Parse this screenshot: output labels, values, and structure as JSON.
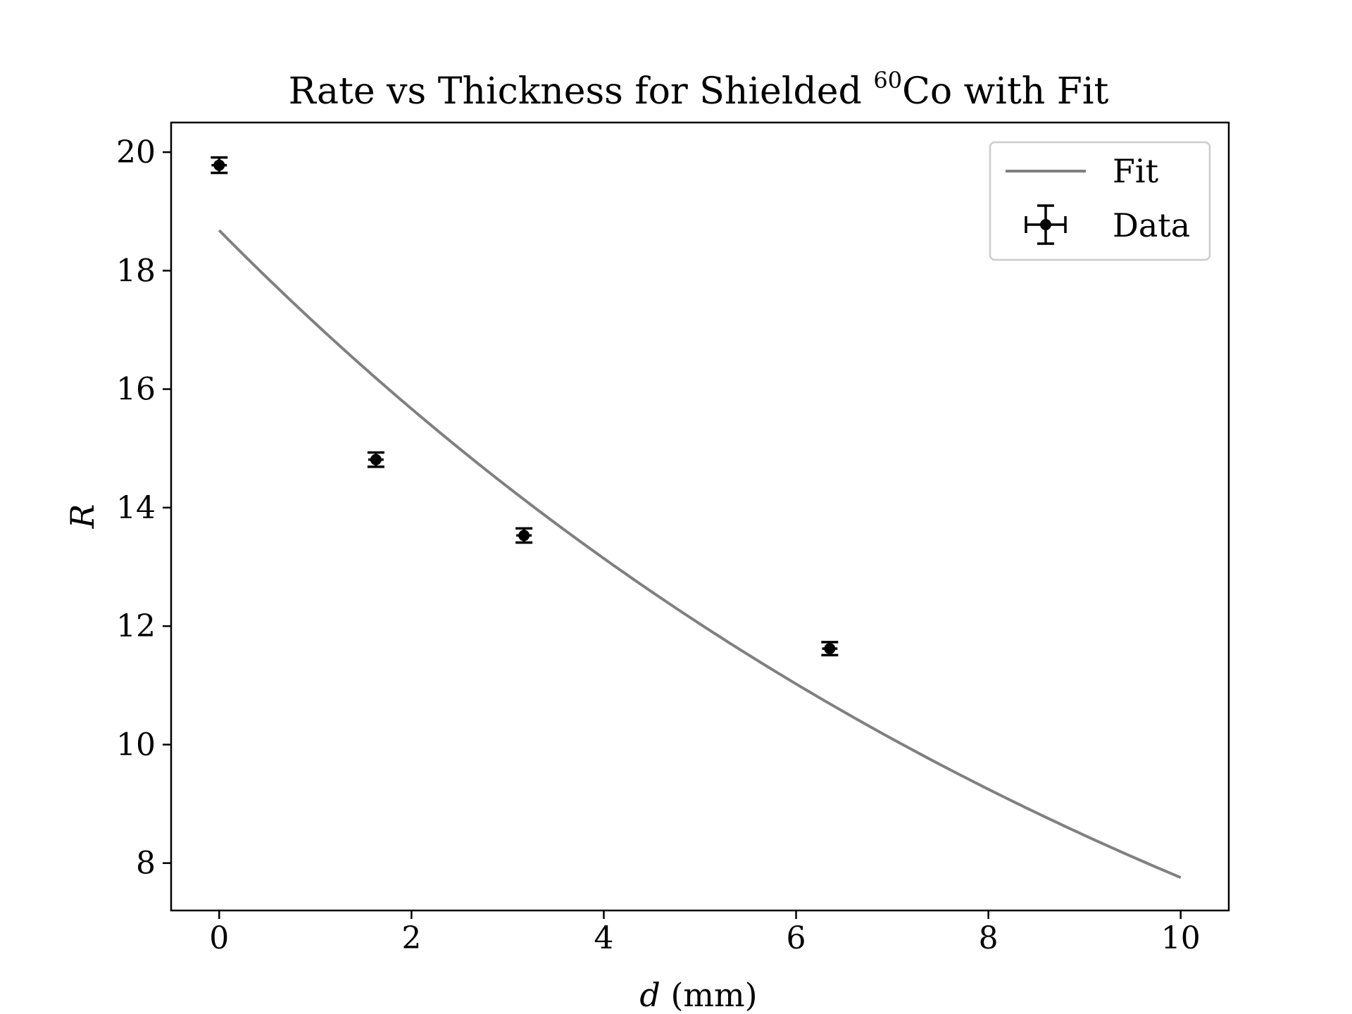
{
  "chart_data": {
    "type": "scatter",
    "title": {
      "prefix": "Rate vs Thickness for Shielded ",
      "superscript": "60",
      "suffix": "Co with Fit"
    },
    "xlabel": {
      "var": "d",
      "unit": " (mm)"
    },
    "ylabel": "R",
    "xlim": [
      -0.5,
      10.5
    ],
    "ylim": [
      7.2,
      20.5
    ],
    "xticks": [
      0,
      2,
      4,
      6,
      8,
      10
    ],
    "yticks": [
      8,
      10,
      12,
      14,
      16,
      18,
      20
    ],
    "grid": false,
    "legend": {
      "position": "top-right",
      "entries": [
        "Fit",
        "Data"
      ]
    },
    "series": [
      {
        "name": "Data",
        "kind": "errorbar",
        "color": "#000000",
        "x": [
          0.0,
          1.63,
          3.17,
          6.35
        ],
        "y": [
          19.78,
          14.81,
          13.53,
          11.62
        ],
        "yerr": [
          0.13,
          0.12,
          0.12,
          0.11
        ],
        "xerr": [
          0.08,
          0.08,
          0.08,
          0.08
        ]
      },
      {
        "name": "Fit",
        "kind": "line",
        "color": "#808080",
        "model": "exponential",
        "A": 18.68,
        "mu": 0.0879,
        "x_range": [
          0,
          10
        ]
      }
    ]
  }
}
